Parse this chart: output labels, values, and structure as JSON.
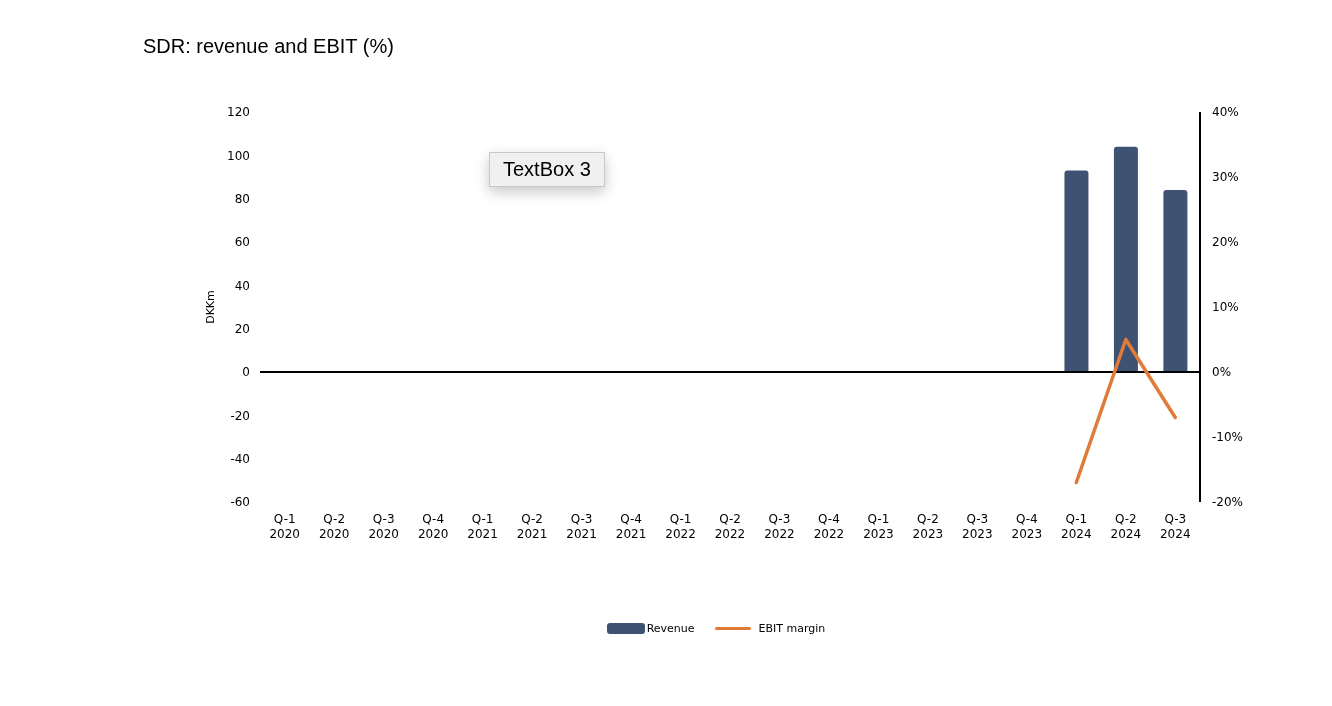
{
  "chart_data": {
    "type": "bar",
    "title": "SDR: revenue and EBIT (%)",
    "ylabel": "DKKm",
    "categories": [
      "Q-1 2020",
      "Q-2 2020",
      "Q-3 2020",
      "Q-4 2020",
      "Q-1 2021",
      "Q-2 2021",
      "Q-3 2021",
      "Q-4 2021",
      "Q-1 2022",
      "Q-2 2022",
      "Q-3 2022",
      "Q-4 2022",
      "Q-1 2023",
      "Q-2 2023",
      "Q-3 2023",
      "Q-4 2023",
      "Q-1 2024",
      "Q-2 2024",
      "Q-3 2024"
    ],
    "series": [
      {
        "name": "Revenue",
        "color": "#3f5274",
        "values": [
          null,
          null,
          null,
          null,
          null,
          null,
          null,
          null,
          null,
          null,
          null,
          null,
          null,
          null,
          null,
          null,
          93,
          104,
          84
        ]
      },
      {
        "name": "EBIT margin",
        "type": "line",
        "axis": "y2",
        "color": "#e07b39",
        "values": [
          null,
          null,
          null,
          null,
          null,
          null,
          null,
          null,
          null,
          null,
          null,
          null,
          null,
          null,
          null,
          null,
          -17,
          5,
          -7
        ]
      }
    ],
    "ylim": [
      -60,
      120
    ],
    "yticks": [
      -60,
      -40,
      -20,
      0,
      20,
      40,
      60,
      80,
      100,
      120
    ],
    "y2lim": [
      -20,
      40
    ],
    "y2ticks": [
      {
        "value": -20,
        "label": "-20%"
      },
      {
        "value": -10,
        "label": "-10%"
      },
      {
        "value": 0,
        "label": "0%"
      },
      {
        "value": 10,
        "label": "10%"
      },
      {
        "value": 20,
        "label": "20%"
      },
      {
        "value": 30,
        "label": "30%"
      },
      {
        "value": 40,
        "label": "40%"
      }
    ],
    "legend": "bottom",
    "annotations": [
      "TextBox 3"
    ]
  }
}
